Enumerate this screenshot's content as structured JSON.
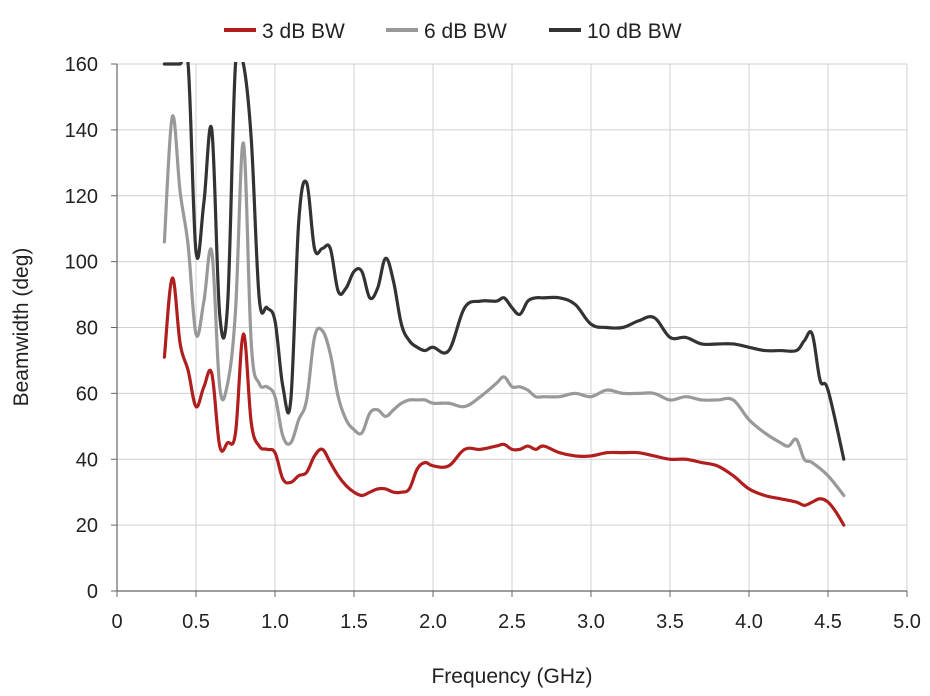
{
  "chart_data": {
    "type": "line",
    "title": "",
    "xlabel": "Frequency (GHz)",
    "ylabel": "Beamwidth (deg)",
    "xlim": [
      0,
      5.0
    ],
    "ylim": [
      0,
      160
    ],
    "x_ticks": [
      "0",
      "0.5",
      "1.0",
      "1.5",
      "2.0",
      "2.5",
      "3.0",
      "3.5",
      "4.0",
      "4.5",
      "5.0"
    ],
    "y_ticks": [
      "0",
      "20",
      "40",
      "60",
      "80",
      "100",
      "120",
      "140",
      "160"
    ],
    "grid": true,
    "legend_position": "top-center",
    "series": [
      {
        "name": "3 dB BW",
        "color": "#b11e1e",
        "x": [
          0.3,
          0.35,
          0.4,
          0.45,
          0.5,
          0.55,
          0.6,
          0.65,
          0.7,
          0.75,
          0.8,
          0.85,
          0.9,
          0.95,
          1.0,
          1.05,
          1.1,
          1.15,
          1.2,
          1.25,
          1.3,
          1.35,
          1.4,
          1.45,
          1.5,
          1.55,
          1.6,
          1.65,
          1.7,
          1.75,
          1.8,
          1.85,
          1.9,
          1.95,
          2.0,
          2.1,
          2.2,
          2.3,
          2.4,
          2.45,
          2.5,
          2.55,
          2.6,
          2.65,
          2.7,
          2.8,
          2.9,
          3.0,
          3.1,
          3.2,
          3.3,
          3.4,
          3.5,
          3.6,
          3.7,
          3.8,
          3.9,
          4.0,
          4.1,
          4.2,
          4.3,
          4.35,
          4.4,
          4.45,
          4.5,
          4.55,
          4.6
        ],
        "y": [
          71,
          95,
          75,
          67,
          56,
          62,
          66,
          44,
          45,
          48,
          78,
          51,
          44,
          43,
          42,
          34,
          33,
          35,
          36,
          41,
          43,
          39,
          35,
          32,
          30,
          29,
          30,
          31,
          31,
          30,
          30,
          31,
          37,
          39,
          38,
          38,
          43,
          43,
          44,
          44.5,
          43,
          43,
          44,
          43,
          44,
          42,
          41,
          41,
          42,
          42,
          42,
          41,
          40,
          40,
          39,
          38,
          35,
          31,
          29,
          28,
          27,
          26,
          27,
          28,
          27,
          24,
          20
        ]
      },
      {
        "name": "6 dB BW",
        "color": "#999999",
        "x": [
          0.3,
          0.35,
          0.4,
          0.45,
          0.5,
          0.55,
          0.6,
          0.65,
          0.7,
          0.75,
          0.8,
          0.85,
          0.9,
          0.95,
          1.0,
          1.05,
          1.1,
          1.15,
          1.2,
          1.25,
          1.3,
          1.35,
          1.4,
          1.45,
          1.5,
          1.55,
          1.6,
          1.65,
          1.7,
          1.75,
          1.8,
          1.85,
          1.9,
          1.95,
          2.0,
          2.1,
          2.2,
          2.3,
          2.4,
          2.45,
          2.5,
          2.55,
          2.6,
          2.65,
          2.7,
          2.8,
          2.9,
          3.0,
          3.1,
          3.2,
          3.3,
          3.4,
          3.5,
          3.6,
          3.7,
          3.8,
          3.9,
          4.0,
          4.1,
          4.2,
          4.25,
          4.3,
          4.35,
          4.4,
          4.5,
          4.6
        ],
        "y": [
          106,
          144,
          121,
          105,
          78,
          88,
          103,
          62,
          63,
          85,
          136,
          75,
          63,
          62,
          59,
          47,
          45,
          52,
          58,
          77,
          79,
          72,
          59,
          52,
          49,
          48,
          54,
          55,
          53,
          55,
          57,
          58,
          58,
          58,
          57,
          57,
          56,
          59,
          63,
          65,
          62,
          62,
          61,
          59,
          59,
          59,
          60,
          59,
          61,
          60,
          60,
          60,
          58,
          59,
          58,
          58,
          58,
          52,
          48,
          45,
          44,
          46,
          40,
          39,
          35,
          29
        ]
      },
      {
        "name": "10 dB BW",
        "color": "#333333",
        "x": [
          0.3,
          0.35,
          0.4,
          0.45,
          0.5,
          0.55,
          0.6,
          0.65,
          0.7,
          0.75,
          0.8,
          0.85,
          0.9,
          0.95,
          1.0,
          1.05,
          1.1,
          1.15,
          1.2,
          1.25,
          1.3,
          1.35,
          1.4,
          1.45,
          1.5,
          1.55,
          1.6,
          1.65,
          1.7,
          1.75,
          1.8,
          1.85,
          1.9,
          1.95,
          2.0,
          2.1,
          2.2,
          2.3,
          2.4,
          2.45,
          2.5,
          2.55,
          2.6,
          2.65,
          2.7,
          2.8,
          2.9,
          3.0,
          3.1,
          3.2,
          3.3,
          3.4,
          3.5,
          3.6,
          3.7,
          3.8,
          3.9,
          4.0,
          4.1,
          4.2,
          4.3,
          4.35,
          4.4,
          4.45,
          4.5,
          4.6
        ],
        "y": [
          160,
          160,
          160,
          160,
          103,
          118,
          140,
          84,
          87,
          160,
          160,
          137,
          89,
          86,
          82,
          62,
          58,
          112,
          124,
          104,
          104,
          104,
          91,
          92,
          97,
          97,
          89,
          92,
          101,
          94,
          81,
          76,
          74,
          73,
          74,
          73,
          86,
          88,
          88,
          89,
          86,
          84,
          88,
          89,
          89,
          89,
          87,
          81,
          80,
          80,
          82,
          83,
          77,
          77,
          75,
          75,
          75,
          74,
          73,
          73,
          73,
          76,
          78,
          64,
          61,
          40
        ]
      }
    ]
  }
}
